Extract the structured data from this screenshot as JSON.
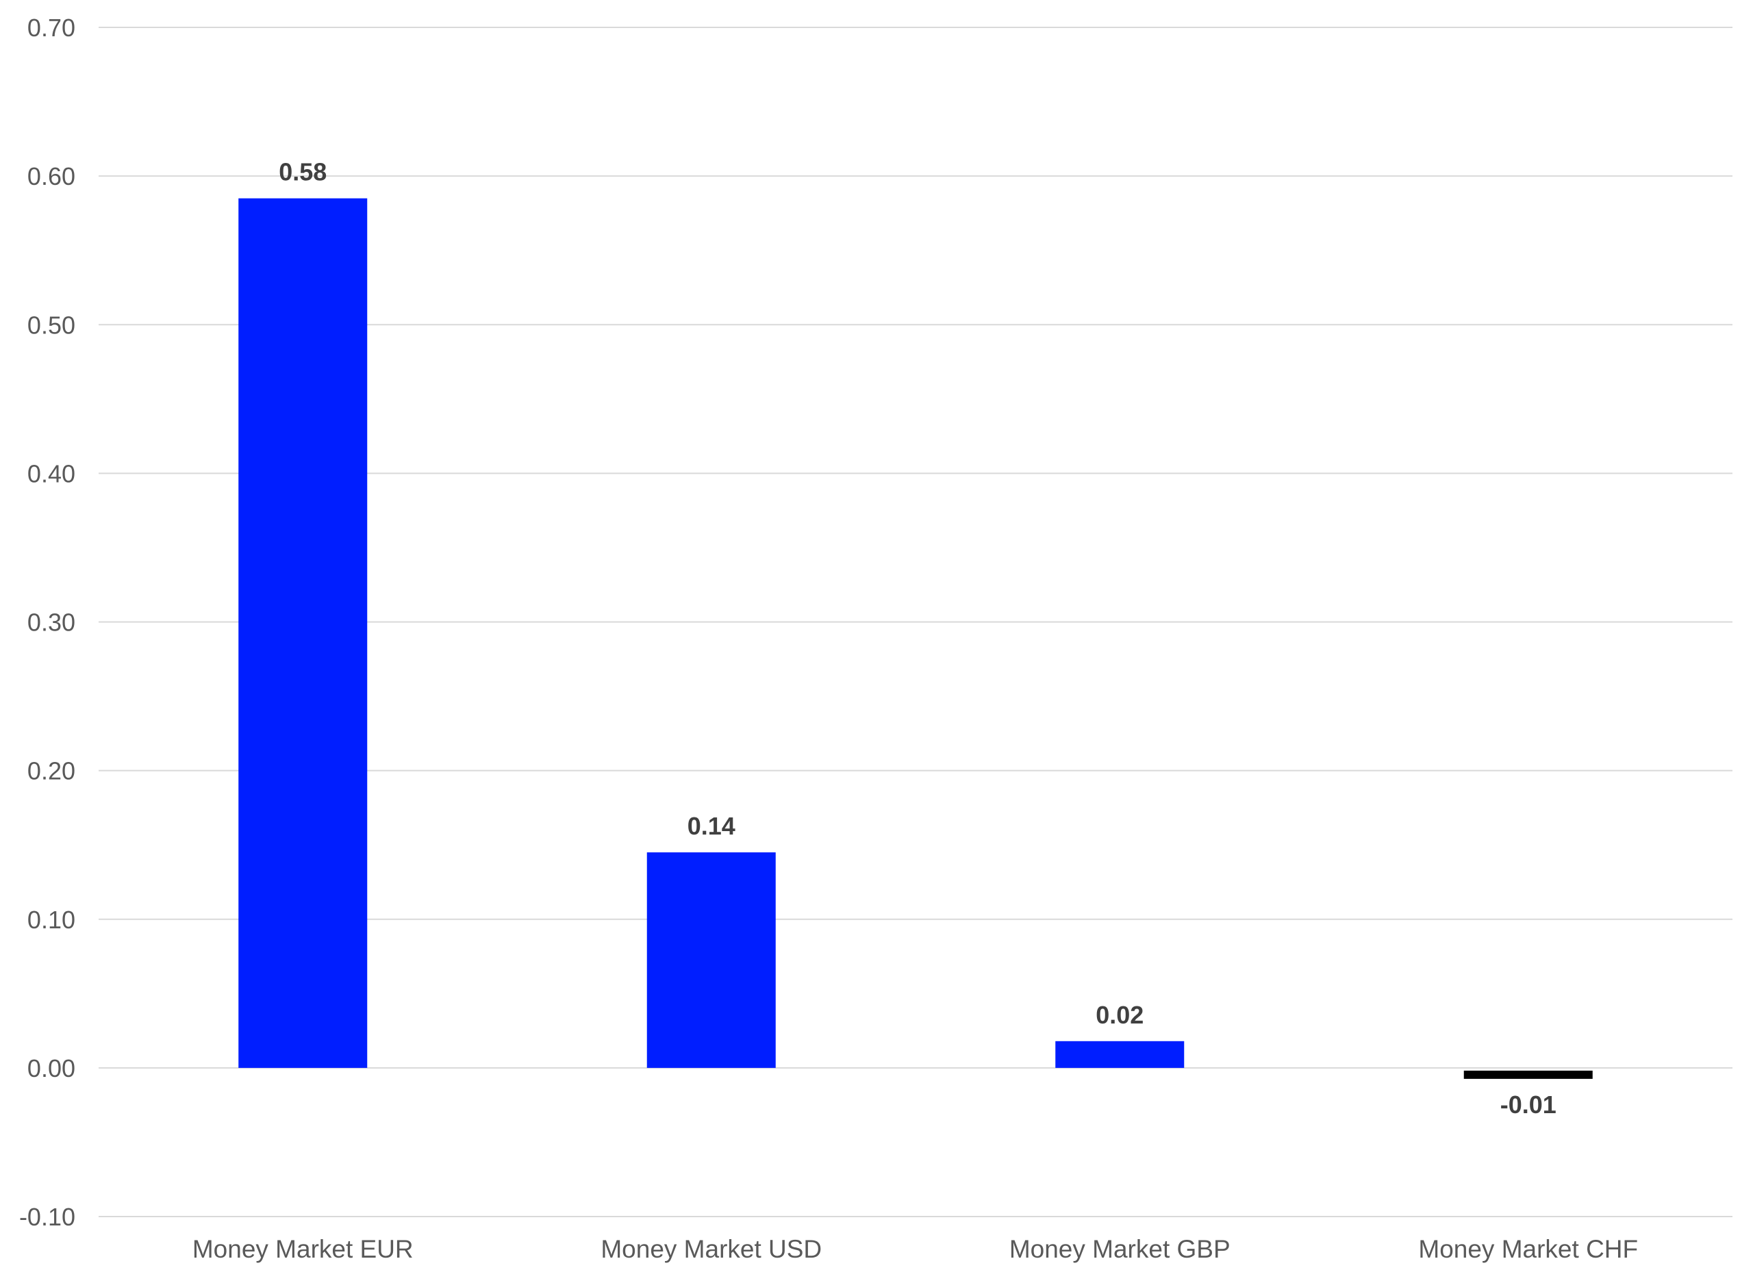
{
  "chart_data": {
    "type": "bar",
    "title": "",
    "xlabel": "",
    "ylabel": "",
    "categories": [
      "Money Market EUR",
      "Money Market USD",
      "Money Market GBP",
      "Money Market CHF"
    ],
    "values": [
      0.585,
      0.145,
      0.018,
      -0.005
    ],
    "data_labels": [
      "0.58",
      "0.14",
      "0.02",
      "-0.01"
    ],
    "ylim": [
      -0.1,
      0.7
    ],
    "yticks": [
      0.7,
      0.6,
      0.5,
      0.4,
      0.3,
      0.2,
      0.1,
      0.0,
      -0.1
    ],
    "ytick_labels": [
      "0.70",
      "0.60",
      "0.50",
      "0.40",
      "0.30",
      "0.20",
      "0.10",
      "0.00",
      "-0.10"
    ],
    "grid": true,
    "legend": "none",
    "colors": {
      "positive": "#001eff",
      "negative": "#000000",
      "grid": "#d9d9d9",
      "tick_text": "#595959",
      "label_text": "#404040"
    }
  }
}
